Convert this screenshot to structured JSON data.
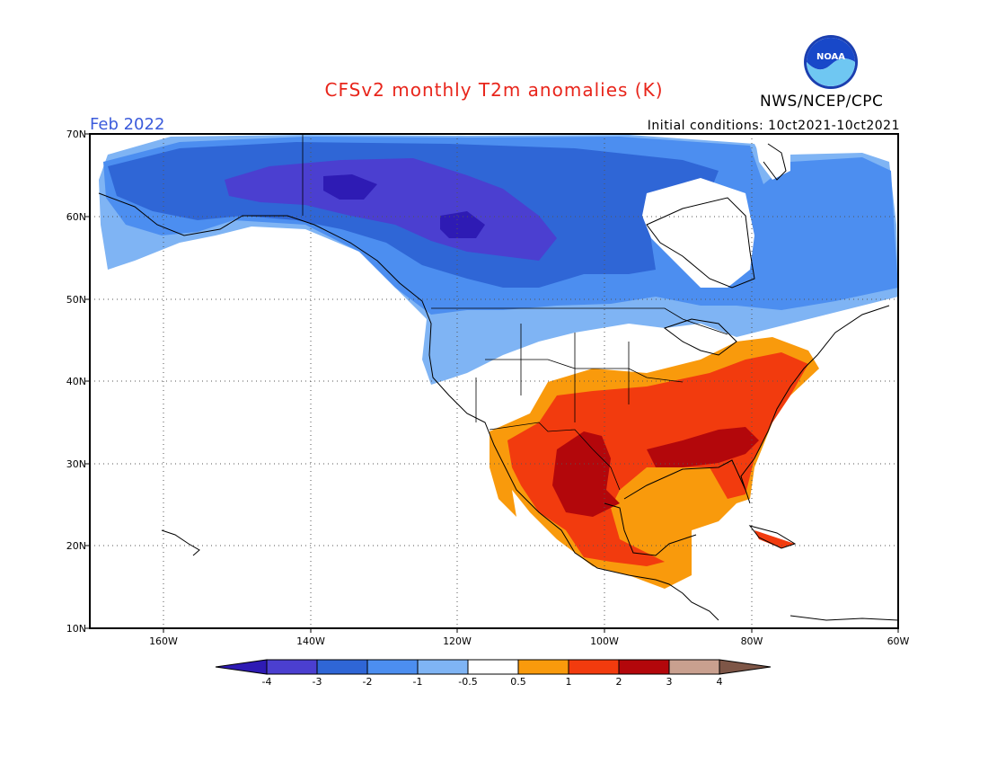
{
  "header": {
    "title": "CFSv2 monthly T2m anomalies (K)",
    "agency": "NWS/NCEP/CPC",
    "logo_text": "NOAA",
    "month": "Feb 2022",
    "initial_conditions": "Initial conditions: 10ct2021-10ct2021"
  },
  "map": {
    "lat_labels": [
      "70N",
      "60N",
      "50N",
      "40N",
      "30N",
      "20N",
      "10N"
    ],
    "lon_labels": [
      "160W",
      "140W",
      "120W",
      "100W",
      "80W",
      "60W"
    ],
    "lat_range": [
      10,
      70
    ],
    "lon_range": [
      -170,
      -60
    ]
  },
  "colorbar": {
    "labels": [
      "-4",
      "-3",
      "-2",
      "-1",
      "-0.5",
      "0.5",
      "1",
      "2",
      "3",
      "4"
    ],
    "colors": [
      "#2e1bb4",
      "#4b3fd0",
      "#2f66d6",
      "#4c8ef0",
      "#7fb4f4",
      "#ffffff",
      "#f99a0c",
      "#f23b0e",
      "#b3070b",
      "#c9a08f",
      "#7e5647"
    ]
  }
}
